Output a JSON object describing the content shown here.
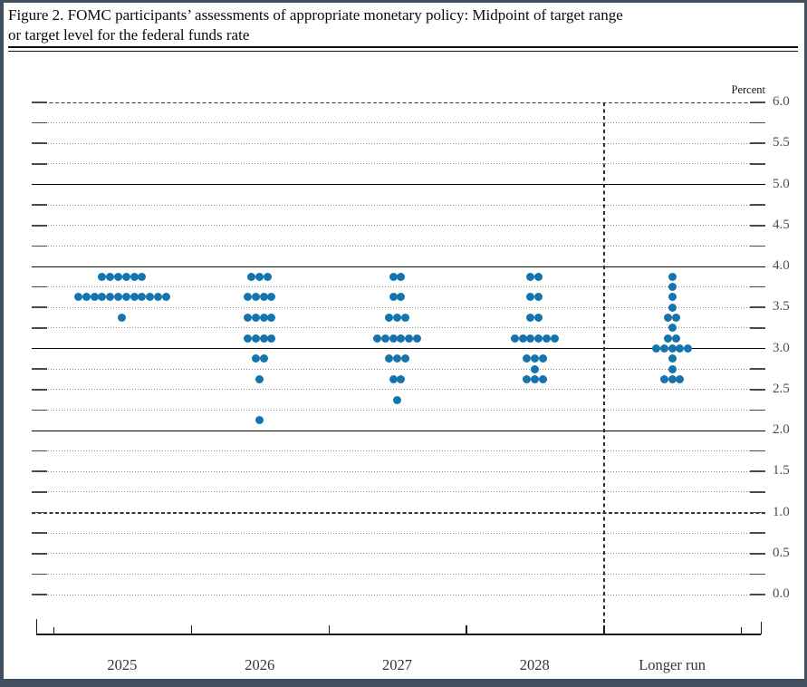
{
  "figure": {
    "title_line1": "Figure 2. FOMC participants’ assessments of appropriate monetary policy: Midpoint of target range",
    "title_line2": "or target level for the federal funds rate"
  },
  "chart_data": {
    "type": "scatter",
    "title": "FOMC participants’ assessments of appropriate monetary policy: Midpoint of target range or target level for the federal funds rate",
    "unit_label": "Percent",
    "dot_color": "#1374ae",
    "categories": [
      "2025",
      "2026",
      "2027",
      "2028",
      "Longer run"
    ],
    "y_axis": {
      "min": 0.0,
      "max": 6.0,
      "grid_step": 0.25,
      "label_step": 0.5,
      "labels": [
        "6.0",
        "5.5",
        "5.0",
        "4.5",
        "4.0",
        "3.5",
        "3.0",
        "2.5",
        "2.0",
        "1.5",
        "1.0",
        "0.5",
        "0.0"
      ],
      "solid_line_values": [
        2.0,
        3.0,
        4.0,
        5.0
      ],
      "dark_dashed_line_values": [
        6.0,
        1.0
      ]
    },
    "grid": "dotted-quarter-point-lines",
    "legend_position": "none",
    "series": [
      {
        "category": "2025",
        "dots": [
          {
            "rate": 3.875,
            "count": 6
          },
          {
            "rate": 3.625,
            "count": 12
          },
          {
            "rate": 3.375,
            "count": 1
          }
        ]
      },
      {
        "category": "2026",
        "dots": [
          {
            "rate": 3.875,
            "count": 3
          },
          {
            "rate": 3.625,
            "count": 4
          },
          {
            "rate": 3.375,
            "count": 4
          },
          {
            "rate": 3.125,
            "count": 4
          },
          {
            "rate": 2.875,
            "count": 2
          },
          {
            "rate": 2.625,
            "count": 1
          },
          {
            "rate": 2.125,
            "count": 1
          }
        ]
      },
      {
        "category": "2027",
        "dots": [
          {
            "rate": 3.875,
            "count": 2
          },
          {
            "rate": 3.625,
            "count": 2
          },
          {
            "rate": 3.375,
            "count": 3
          },
          {
            "rate": 3.125,
            "count": 6
          },
          {
            "rate": 2.875,
            "count": 3
          },
          {
            "rate": 2.625,
            "count": 2
          },
          {
            "rate": 2.375,
            "count": 1
          }
        ]
      },
      {
        "category": "2028",
        "dots": [
          {
            "rate": 3.875,
            "count": 2
          },
          {
            "rate": 3.625,
            "count": 2
          },
          {
            "rate": 3.375,
            "count": 2
          },
          {
            "rate": 3.125,
            "count": 6
          },
          {
            "rate": 2.875,
            "count": 3
          },
          {
            "rate": 2.75,
            "count": 1
          },
          {
            "rate": 2.625,
            "count": 3
          }
        ]
      },
      {
        "category": "Longer run",
        "dots": [
          {
            "rate": 3.875,
            "count": 1
          },
          {
            "rate": 3.75,
            "count": 1
          },
          {
            "rate": 3.625,
            "count": 1
          },
          {
            "rate": 3.5,
            "count": 1
          },
          {
            "rate": 3.375,
            "count": 2
          },
          {
            "rate": 3.25,
            "count": 1
          },
          {
            "rate": 3.125,
            "count": 2
          },
          {
            "rate": 3.0,
            "count": 5
          },
          {
            "rate": 2.875,
            "count": 1
          },
          {
            "rate": 2.75,
            "count": 1
          },
          {
            "rate": 2.625,
            "count": 3
          }
        ]
      }
    ]
  }
}
